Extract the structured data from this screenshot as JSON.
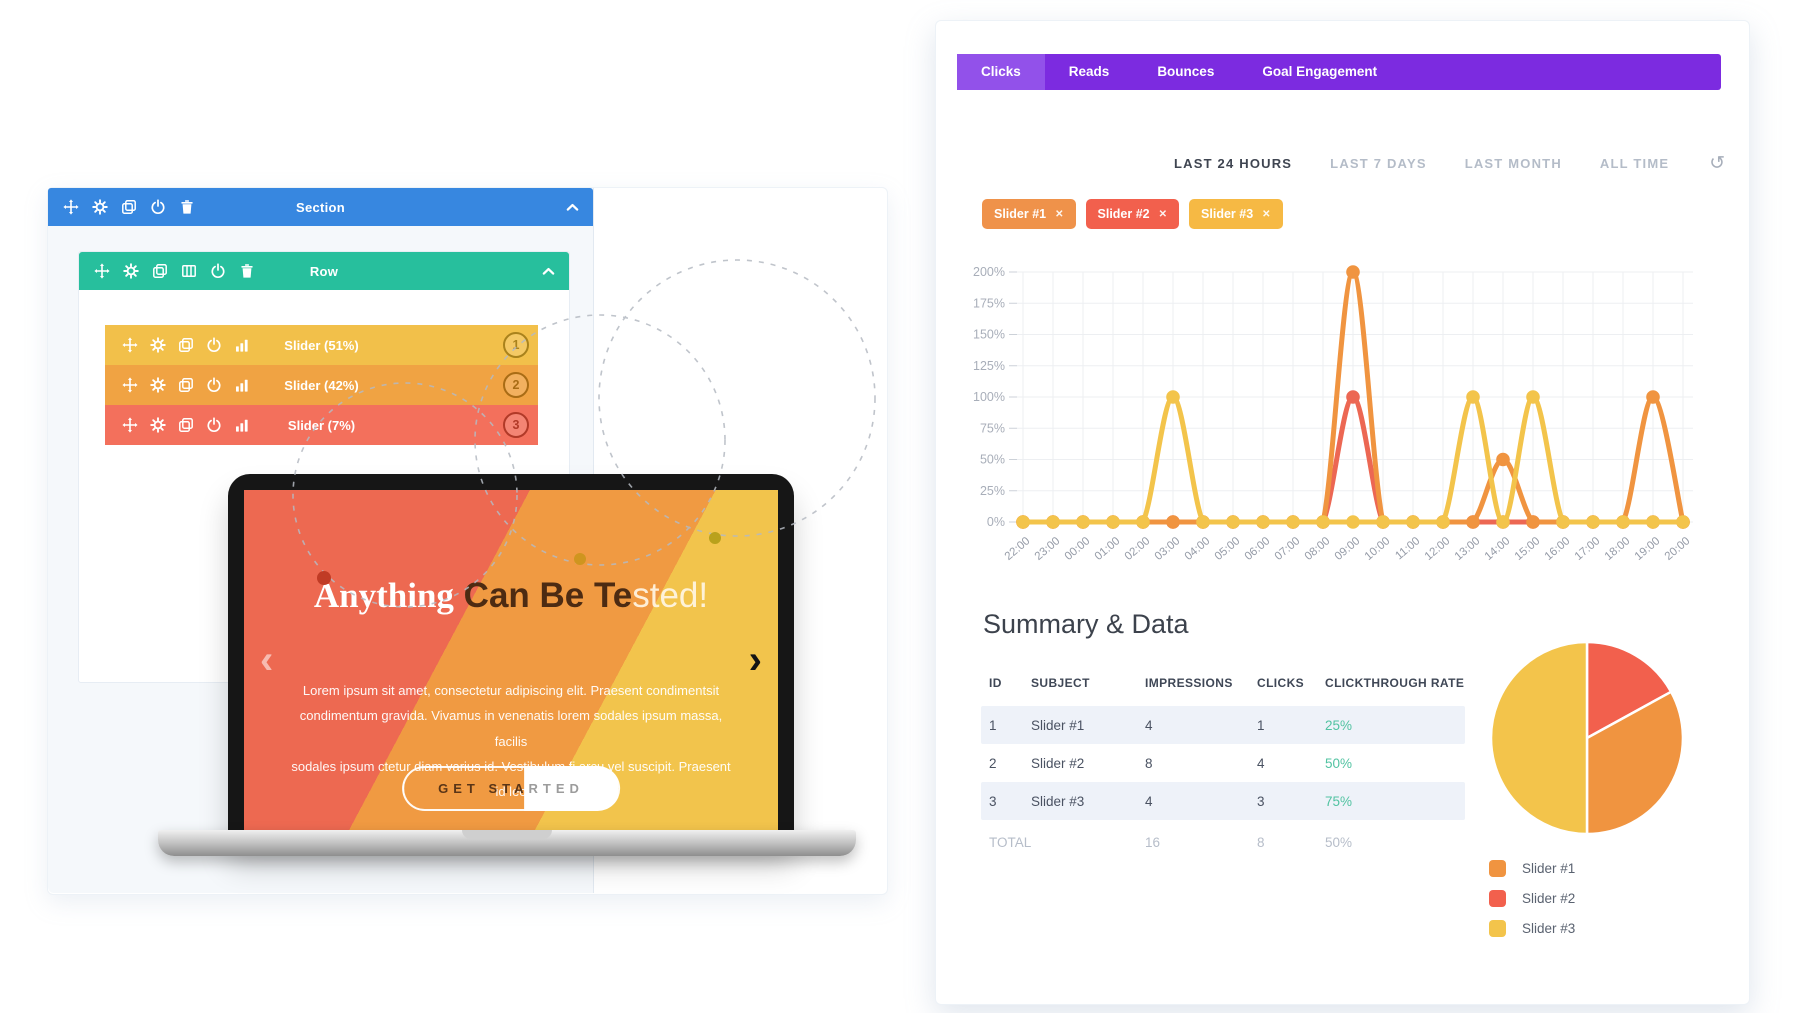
{
  "builder": {
    "section": {
      "label": "Section",
      "color": "#3787e0",
      "icons": [
        "move",
        "gear",
        "duplicate",
        "save",
        "trash"
      ]
    },
    "row": {
      "label": "Row",
      "color": "#27bf9d",
      "icons": [
        "move",
        "gear",
        "duplicate",
        "columns",
        "save",
        "trash"
      ]
    },
    "module_icons": [
      "move",
      "gear",
      "duplicate",
      "save",
      "stats"
    ],
    "sliders": [
      {
        "label": "Slider (51%)",
        "badge": "1",
        "color": "#f2c04a",
        "accent": "#a9821c"
      },
      {
        "label": "Slider (42%)",
        "badge": "2",
        "color": "#f0a343",
        "accent": "#a96c15"
      },
      {
        "label": "Slider (7%)",
        "badge": "3",
        "color": "#f3705c",
        "accent": "#b13a28"
      }
    ]
  },
  "laptop": {
    "slide": {
      "heading_serif": "Anything",
      "heading_bold": " Can Be Te",
      "heading_light": "sted!",
      "body_lines": [
        "Lorem ipsum sit amet, consectetur adipiscing elit. Praesent condimentsit",
        "condimentum gravida. Vivamus in venenatis lorem sodales ipsum massa, facilis",
        "sodales ipsum ctetur diam varius id. Vestibulum fi arcu vel suscipit. Praesent id leo"
      ],
      "button_left": "GET STA",
      "button_right": "RTED",
      "prev": "‹",
      "next": "›",
      "band_colors": [
        "#ed6951",
        "#f09a42",
        "#f2c44c"
      ]
    }
  },
  "analytics": {
    "tabs": [
      {
        "label": "Clicks",
        "active": true
      },
      {
        "label": "Reads",
        "active": false
      },
      {
        "label": "Bounces",
        "active": false
      },
      {
        "label": "Goal Engagement",
        "active": false
      }
    ],
    "tab_colors": {
      "bar": "#7c2be0",
      "active": "#9251ea"
    },
    "ranges": [
      {
        "label": "LAST 24 HOURS",
        "active": true
      },
      {
        "label": "LAST 7 DAYS",
        "active": false
      },
      {
        "label": "LAST MONTH",
        "active": false
      },
      {
        "label": "ALL TIME",
        "active": false
      }
    ],
    "refresh_glyph": "↺",
    "filters": [
      {
        "label": "Slider #1",
        "color": "#ef924a"
      },
      {
        "label": "Slider #2",
        "color": "#f2604d"
      },
      {
        "label": "Slider #3",
        "color": "#f6b944"
      }
    ],
    "filter_close_glyph": "✕",
    "summary_title": "Summary & Data",
    "table": {
      "headers": [
        "ID",
        "SUBJECT",
        "IMPRESSIONS",
        "CLICKS",
        "CLICKTHROUGH RATE"
      ],
      "rows": [
        {
          "id": "1",
          "subject": "Slider #1",
          "impressions": "4",
          "clicks": "1",
          "ctr": "25%"
        },
        {
          "id": "2",
          "subject": "Slider #2",
          "impressions": "8",
          "clicks": "4",
          "ctr": "50%"
        },
        {
          "id": "3",
          "subject": "Slider #3",
          "impressions": "4",
          "clicks": "3",
          "ctr": "75%"
        }
      ],
      "total": {
        "label": "TOTAL",
        "impressions": "16",
        "clicks": "8",
        "ctr": "50%"
      },
      "ctr_color": "#52c3a2"
    },
    "legend": [
      {
        "label": "Slider #1",
        "color": "#f09440"
      },
      {
        "label": "Slider #2",
        "color": "#f2604d"
      },
      {
        "label": "Slider #3",
        "color": "#f3c44b"
      }
    ]
  },
  "chart_data": [
    {
      "type": "line",
      "x": [
        "22:00",
        "23:00",
        "00:00",
        "01:00",
        "02:00",
        "03:00",
        "04:00",
        "05:00",
        "06:00",
        "07:00",
        "08:00",
        "09:00",
        "10:00",
        "11:00",
        "12:00",
        "13:00",
        "14:00",
        "15:00",
        "16:00",
        "17:00",
        "18:00",
        "19:00",
        "20:00"
      ],
      "series": [
        {
          "name": "Slider #1",
          "color": "#f09440",
          "values": [
            0,
            0,
            0,
            0,
            0,
            0,
            0,
            0,
            0,
            0,
            0,
            200,
            0,
            0,
            0,
            0,
            50,
            0,
            0,
            0,
            0,
            100,
            0
          ]
        },
        {
          "name": "Slider #2",
          "color": "#ec6753",
          "values": [
            0,
            0,
            0,
            0,
            0,
            0,
            0,
            0,
            0,
            0,
            0,
            100,
            0,
            0,
            0,
            0,
            0,
            0,
            0,
            0,
            0,
            0,
            0
          ]
        },
        {
          "name": "Slider #3",
          "color": "#f3c44b",
          "values": [
            0,
            0,
            0,
            0,
            0,
            100,
            0,
            0,
            0,
            0,
            0,
            0,
            0,
            0,
            0,
            100,
            0,
            100,
            0,
            0,
            0,
            0,
            0
          ]
        }
      ],
      "draw_order": [
        1,
        0,
        2
      ],
      "ylim": [
        0,
        200
      ],
      "ytick_step": 25,
      "yunit": "%",
      "grid": true,
      "legend_position": "none"
    },
    {
      "type": "pie",
      "start": "top",
      "direction": "clockwise",
      "slices": [
        {
          "label": "Slider #2",
          "value": 17,
          "color": "#f2604d"
        },
        {
          "label": "Slider #1",
          "value": 33,
          "color": "#f09440"
        },
        {
          "label": "Slider #3",
          "value": 50,
          "color": "#f3c44b"
        }
      ]
    }
  ]
}
